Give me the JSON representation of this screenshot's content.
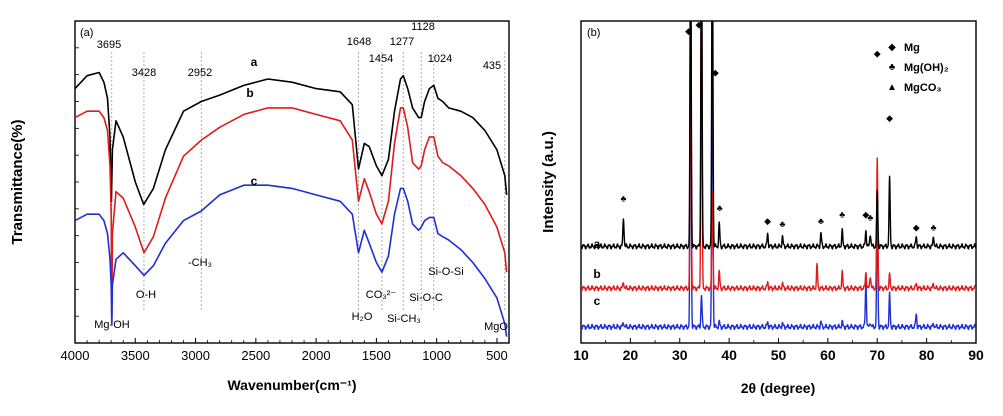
{
  "chart_data": [
    {
      "type": "line",
      "panel_label": "(a)",
      "xlabel": "Wavenumber(cm⁻¹)",
      "ylabel": "Transmittance(%)",
      "xlim": [
        4000,
        400
      ],
      "x_reversed": true,
      "ylim": [
        0,
        100
      ],
      "yticks_labeled": false,
      "x_ticks": [
        "4000",
        "3500",
        "3000",
        "2500",
        "2000",
        "1500",
        "1000",
        "500"
      ],
      "x_tick_values": [
        4000,
        3500,
        3000,
        2500,
        2000,
        1500,
        1000,
        500
      ],
      "peak_lines": [
        3695,
        3428,
        2952,
        1648,
        1454,
        1277,
        1128,
        1024,
        435
      ],
      "peak_labels": [
        {
          "text": "3695",
          "x": 3695
        },
        {
          "text": "3428",
          "x": 3428
        },
        {
          "text": "2952",
          "x": 2952
        },
        {
          "text": "1648",
          "x": 1648
        },
        {
          "text": "1454",
          "x": 1454
        },
        {
          "text": "1277",
          "x": 1277
        },
        {
          "text": "1128",
          "x": 1128
        },
        {
          "text": "1024",
          "x": 1024
        },
        {
          "text": "435",
          "x": 435
        }
      ],
      "assignments": [
        "Mg-OH",
        "O-H",
        "-CH₃",
        "H₂O",
        "CO₃²⁻",
        "Si-CH₃",
        "Si-O-C",
        "Si-O-Si",
        "MgO"
      ],
      "series": [
        {
          "name": "a",
          "color": "#000000",
          "x": [
            4000,
            3900,
            3800,
            3760,
            3730,
            3710,
            3698,
            3690,
            3660,
            3600,
            3500,
            3430,
            3350,
            3250,
            3100,
            2952,
            2800,
            2600,
            2400,
            2200,
            2000,
            1800,
            1700,
            1648,
            1600,
            1560,
            1500,
            1454,
            1400,
            1350,
            1300,
            1277,
            1240,
            1200,
            1150,
            1128,
            1100,
            1060,
            1024,
            990,
            950,
            900,
            800,
            700,
            600,
            500,
            435,
            420
          ],
          "y": [
            79,
            83,
            84,
            81,
            76,
            64,
            44,
            60,
            69,
            64,
            50,
            43,
            48,
            60,
            72,
            75,
            77,
            80,
            82,
            81,
            79,
            78,
            74,
            54,
            62,
            61,
            55,
            52,
            57,
            72,
            82,
            83,
            79,
            73,
            70,
            70,
            75,
            79,
            80,
            76,
            75,
            73,
            72,
            70,
            66,
            60,
            52,
            46
          ]
        },
        {
          "name": "b",
          "color": "#e01b1b",
          "x": [
            4000,
            3900,
            3800,
            3760,
            3730,
            3710,
            3700,
            3695,
            3690,
            3660,
            3600,
            3500,
            3428,
            3350,
            3250,
            3100,
            2952,
            2800,
            2600,
            2400,
            2200,
            2000,
            1800,
            1700,
            1648,
            1600,
            1560,
            1500,
            1454,
            1400,
            1350,
            1300,
            1277,
            1240,
            1200,
            1150,
            1128,
            1100,
            1060,
            1024,
            990,
            950,
            900,
            800,
            700,
            600,
            500,
            435,
            420
          ],
          "y": [
            70,
            72,
            72,
            70,
            66,
            55,
            40,
            6,
            34,
            47,
            45,
            36,
            28,
            33,
            45,
            58,
            63,
            67,
            71,
            73,
            73,
            71,
            69,
            63,
            44,
            51,
            47,
            40,
            37,
            44,
            62,
            73,
            73,
            67,
            56,
            54,
            55,
            60,
            64,
            64,
            58,
            56,
            55,
            52,
            48,
            43,
            36,
            28,
            22
          ]
        },
        {
          "name": "c",
          "color": "#1f2fd6",
          "x": [
            4000,
            3900,
            3800,
            3760,
            3730,
            3710,
            3700,
            3695,
            3690,
            3660,
            3600,
            3500,
            3428,
            3350,
            3250,
            3100,
            2952,
            2800,
            2600,
            2400,
            2200,
            2000,
            1800,
            1700,
            1648,
            1600,
            1560,
            1500,
            1454,
            1400,
            1350,
            1300,
            1277,
            1240,
            1200,
            1150,
            1128,
            1100,
            1060,
            1024,
            990,
            950,
            900,
            800,
            700,
            600,
            500,
            435,
            420
          ],
          "y": [
            38,
            40,
            40,
            38,
            34,
            26,
            18,
            6,
            18,
            26,
            28,
            24,
            21,
            24,
            31,
            38,
            41,
            46,
            49,
            49,
            48,
            46,
            44,
            40,
            28,
            35,
            31,
            25,
            22,
            27,
            40,
            48,
            48,
            44,
            37,
            35,
            36,
            38,
            39,
            39,
            34,
            33,
            32,
            29,
            25,
            20,
            14,
            6,
            2
          ]
        }
      ]
    },
    {
      "type": "line",
      "panel_label": "(b)",
      "xlabel": "2θ (degree)",
      "ylabel": "Intensity (a.u.)",
      "xlim": [
        10,
        90
      ],
      "ylim": [
        0,
        100
      ],
      "yticks_labeled": false,
      "x_ticks": [
        "10",
        "20",
        "30",
        "40",
        "50",
        "60",
        "70",
        "80",
        "90"
      ],
      "x_tick_values": [
        10,
        20,
        30,
        40,
        50,
        60,
        70,
        80,
        90
      ],
      "legend": {
        "placement": "top-right",
        "entries": [
          {
            "symbol": "◆",
            "label": "Mg"
          },
          {
            "symbol": "♣",
            "label": "Mg(OH)₂"
          },
          {
            "symbol": "▲",
            "label": "MgCO₃"
          }
        ]
      },
      "series": [
        {
          "name": "a",
          "color": "#000000",
          "baseline": 30,
          "peaks": [
            [
              18.6,
              9
            ],
            [
              32.2,
              110
            ],
            [
              34.4,
              110
            ],
            [
              36.6,
              110
            ],
            [
              38.0,
              7
            ],
            [
              47.8,
              4
            ],
            [
              50.8,
              3
            ],
            [
              58.6,
              4
            ],
            [
              62.9,
              5
            ],
            [
              67.7,
              5
            ],
            [
              68.6,
              4
            ],
            [
              70.0,
              17
            ],
            [
              72.5,
              21
            ],
            [
              77.9,
              3
            ],
            [
              81.4,
              3
            ]
          ]
        },
        {
          "name": "b",
          "color": "#e01b1b",
          "baseline": 17,
          "peaks": [
            [
              18.6,
              2
            ],
            [
              32.2,
              95
            ],
            [
              34.4,
              110
            ],
            [
              36.6,
              30
            ],
            [
              38.0,
              5
            ],
            [
              47.8,
              2
            ],
            [
              50.8,
              1.5
            ],
            [
              57.8,
              7
            ],
            [
              62.9,
              5
            ],
            [
              67.7,
              5
            ],
            [
              68.6,
              4
            ],
            [
              70.0,
              40
            ],
            [
              72.5,
              4
            ],
            [
              77.9,
              1.5
            ],
            [
              81.4,
              1.5
            ]
          ]
        },
        {
          "name": "c",
          "color": "#1f2fd6",
          "baseline": 5,
          "peaks": [
            [
              18.6,
              1.5
            ],
            [
              32.2,
              110
            ],
            [
              34.4,
              10
            ],
            [
              36.6,
              110
            ],
            [
              38.0,
              1.5
            ],
            [
              47.8,
              1.5
            ],
            [
              50.8,
              1
            ],
            [
              58.6,
              1.5
            ],
            [
              62.9,
              1.5
            ],
            [
              67.7,
              14
            ],
            [
              68.6,
              1.5
            ],
            [
              70.0,
              42
            ],
            [
              72.5,
              10
            ],
            [
              77.9,
              4
            ],
            [
              81.4,
              1
            ]
          ]
        }
      ],
      "markers": [
        {
          "symbol": "♣",
          "x": 18.6,
          "y": 44
        },
        {
          "symbol": "◆",
          "x": 31.8,
          "y": 96
        },
        {
          "symbol": "◆",
          "x": 33.9,
          "y": 98
        },
        {
          "symbol": "◆",
          "x": 37.2,
          "y": 83
        },
        {
          "symbol": "♣",
          "x": 38.1,
          "y": 41
        },
        {
          "symbol": "◆",
          "x": 47.8,
          "y": 37
        },
        {
          "symbol": "♣",
          "x": 50.8,
          "y": 36
        },
        {
          "symbol": "♣",
          "x": 58.6,
          "y": 37
        },
        {
          "symbol": "♣",
          "x": 62.9,
          "y": 39
        },
        {
          "symbol": "◆",
          "x": 67.7,
          "y": 39
        },
        {
          "symbol": "♣",
          "x": 68.6,
          "y": 38
        },
        {
          "symbol": "◆",
          "x": 70.0,
          "y": 89
        },
        {
          "symbol": "◆",
          "x": 72.5,
          "y": 69
        },
        {
          "symbol": "◆",
          "x": 77.9,
          "y": 35
        },
        {
          "symbol": "♣",
          "x": 81.4,
          "y": 35
        }
      ]
    }
  ]
}
